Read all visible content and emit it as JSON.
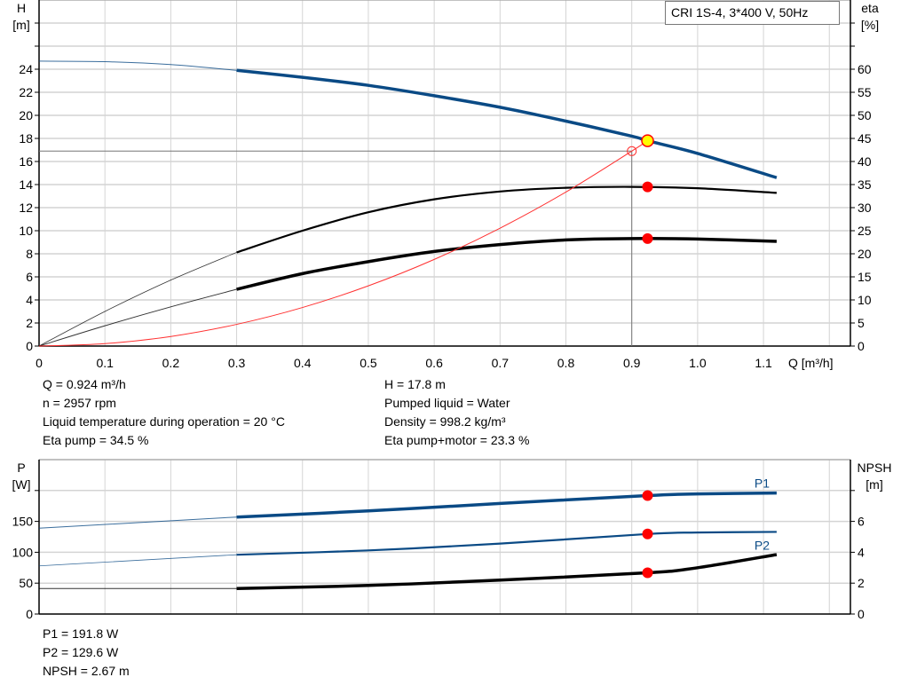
{
  "title_box": "CRI 1S-4, 3*400 V, 50Hz",
  "info_top": {
    "left": [
      "Q = 0.924 m³/h",
      "n = 2957 rpm",
      "Liquid temperature during operation = 20 °C",
      "Eta pump = 34.5 %"
    ],
    "right": [
      "H = 17.8 m",
      "Pumped liquid = Water",
      "Density = 998.2 kg/m³",
      "Eta pump+motor = 23.3 %"
    ]
  },
  "info_bottom": [
    "P1 = 191.8 W",
    "P2 = 129.6 W",
    "NPSH = 2.67 m"
  ],
  "colors": {
    "head": "#0a4a85",
    "power": "#0a4a85",
    "efficiency": "#000000",
    "system": "#ff3030",
    "marker": "#ff0000",
    "duty_fill": "#ffff00",
    "grid": "#d4d4d4"
  },
  "chart_data": [
    {
      "type": "line",
      "xlabel": "Q [m³/h]",
      "ylabel_left": [
        "H",
        "[m]"
      ],
      "ylabel_right": [
        "eta",
        "[%]"
      ],
      "xlim": [
        0,
        1.232
      ],
      "ylim_left": [
        0,
        30
      ],
      "ylim_right": [
        0,
        75
      ],
      "x_ticks": [
        "0",
        "0.1",
        "0.2",
        "0.3",
        "0.4",
        "0.5",
        "0.6",
        "0.7",
        "0.8",
        "0.9",
        "1.0",
        "1.1"
      ],
      "y_ticks_left": [
        "0",
        "2",
        "4",
        "6",
        "8",
        "10",
        "12",
        "14",
        "16",
        "18",
        "20",
        "22",
        "24"
      ],
      "y_ticks_right": [
        "0",
        "5",
        "10",
        "15",
        "20",
        "25",
        "30",
        "35",
        "40",
        "45",
        "50",
        "55",
        "60"
      ],
      "grid": true,
      "series": [
        {
          "key": "H",
          "axis": "left",
          "thin_until": 0.3,
          "x": [
            0,
            0.1,
            0.2,
            0.3,
            0.4,
            0.5,
            0.6,
            0.7,
            0.8,
            0.9,
            0.924,
            1.0,
            1.12
          ],
          "y": [
            24.7,
            24.65,
            24.4,
            23.9,
            23.3,
            22.6,
            21.7,
            20.7,
            19.5,
            18.2,
            17.8,
            16.7,
            14.6
          ]
        },
        {
          "key": "eta_pump",
          "axis": "right",
          "thin_until": 0.3,
          "x": [
            0,
            0.1,
            0.2,
            0.3,
            0.4,
            0.5,
            0.6,
            0.7,
            0.8,
            0.9,
            1.0,
            1.12
          ],
          "y": [
            0,
            7.5,
            14.3,
            20.3,
            25,
            29,
            31.8,
            33.5,
            34.3,
            34.5,
            34.2,
            33.2
          ]
        },
        {
          "key": "eta_pump_motor",
          "axis": "right",
          "thin_until": 0.3,
          "x": [
            0,
            0.1,
            0.2,
            0.3,
            0.4,
            0.5,
            0.6,
            0.7,
            0.8,
            0.9,
            1.0,
            1.12
          ],
          "y": [
            0,
            4.4,
            8.5,
            12.3,
            15.7,
            18.3,
            20.5,
            22,
            23,
            23.3,
            23.2,
            22.7
          ]
        },
        {
          "key": "system_curve",
          "axis": "left",
          "x": [
            0,
            0.1,
            0.2,
            0.3,
            0.4,
            0.5,
            0.6,
            0.7,
            0.8,
            0.9,
            0.924
          ],
          "y": [
            0,
            0.21,
            0.83,
            1.88,
            3.34,
            5.22,
            7.51,
            10.22,
            13.35,
            16.9,
            17.8
          ]
        }
      ],
      "requested_point": {
        "Q": 0.9,
        "H": 16.9
      },
      "duty_point": {
        "Q": 0.924,
        "H": 17.8,
        "eta_pump": 34.5,
        "eta_pump_motor": 23.3
      }
    },
    {
      "type": "line",
      "ylabel_left": [
        "P",
        "[W]"
      ],
      "ylabel_right": [
        "NPSH",
        "[m]"
      ],
      "xlim": [
        0,
        1.232
      ],
      "ylim_left": [
        0,
        250
      ],
      "ylim_right": [
        0,
        10
      ],
      "y_ticks_left": [
        "0",
        "50",
        "100",
        "150"
      ],
      "y_ticks_right": [
        "0",
        "2",
        "4",
        "6"
      ],
      "grid": true,
      "series": [
        {
          "name": "P1",
          "key": "P1",
          "axis": "left",
          "thin_until": 0.3,
          "x": [
            0,
            0.3,
            0.5,
            0.7,
            0.924,
            1.0,
            1.12
          ],
          "y": [
            139,
            157,
            167,
            179,
            191.8,
            194.5,
            196
          ]
        },
        {
          "name": "P2",
          "key": "P2",
          "axis": "left",
          "thin_until": 0.3,
          "x": [
            0,
            0.3,
            0.5,
            0.7,
            0.924,
            1.0,
            1.12
          ],
          "y": [
            78,
            96,
            103,
            114,
            129.6,
            132,
            133
          ]
        },
        {
          "key": "NPSH",
          "axis": "right",
          "thin_until": 0.3,
          "x": [
            0,
            0.3,
            0.5,
            0.7,
            0.924,
            1.0,
            1.12
          ],
          "y": [
            1.65,
            1.65,
            1.85,
            2.2,
            2.67,
            3.0,
            3.85
          ]
        }
      ],
      "duty_point": {
        "Q": 0.924,
        "P1": 191.8,
        "P2": 129.6,
        "NPSH": 2.67
      }
    }
  ]
}
